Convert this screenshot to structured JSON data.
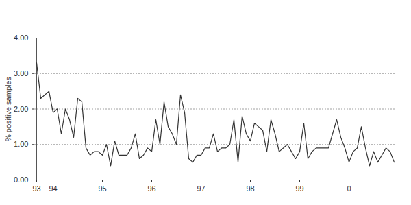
{
  "chart_data": {
    "type": "line",
    "y_label": "% positive samples",
    "categories": [
      "93",
      null,
      null,
      null,
      "94",
      null,
      null,
      null,
      null,
      null,
      null,
      null,
      null,
      null,
      null,
      null,
      "95",
      null,
      null,
      null,
      null,
      null,
      null,
      null,
      null,
      null,
      null,
      null,
      "96",
      null,
      null,
      null,
      null,
      null,
      null,
      null,
      null,
      null,
      null,
      null,
      "97",
      null,
      null,
      null,
      null,
      null,
      null,
      null,
      null,
      null,
      null,
      null,
      "98",
      null,
      null,
      null,
      null,
      null,
      null,
      null,
      null,
      null,
      null,
      null,
      "99",
      null,
      null,
      null,
      null,
      null,
      null,
      null,
      null,
      null,
      null,
      null,
      "0",
      null,
      null,
      null,
      null,
      null,
      null,
      null,
      null,
      null,
      null,
      null
    ],
    "values": [
      3.3,
      2.3,
      2.4,
      2.5,
      1.9,
      2.0,
      1.3,
      2.0,
      1.7,
      1.2,
      2.3,
      2.2,
      0.9,
      0.7,
      0.8,
      0.8,
      0.7,
      1.0,
      0.4,
      1.1,
      0.7,
      0.7,
      0.7,
      0.9,
      1.3,
      0.6,
      0.7,
      0.9,
      0.8,
      1.7,
      1.0,
      2.2,
      1.5,
      1.3,
      1.0,
      2.4,
      1.9,
      0.6,
      0.5,
      0.7,
      0.7,
      0.9,
      0.9,
      1.3,
      0.8,
      0.9,
      0.9,
      1.0,
      1.7,
      0.5,
      1.8,
      1.3,
      1.1,
      1.6,
      1.5,
      1.4,
      0.8,
      1.7,
      1.3,
      0.8,
      0.9,
      1.0,
      0.8,
      0.6,
      0.8,
      1.6,
      0.6,
      0.8,
      0.9,
      0.9,
      0.9,
      0.9,
      1.3,
      1.7,
      1.2,
      0.9,
      0.5,
      0.8,
      0.9,
      1.5,
      0.9,
      0.4,
      0.8,
      0.5,
      0.7,
      0.9,
      0.8,
      0.5
    ],
    "color": "#333333",
    "ylim": [
      0,
      4
    ],
    "yticks": [
      {
        "value": 0,
        "label": "0.00"
      },
      {
        "value": 1,
        "label": "1.00"
      },
      {
        "value": 2,
        "label": "2.00"
      },
      {
        "value": 3,
        "label": "3.00"
      },
      {
        "value": 4,
        "label": "4.00"
      }
    ],
    "grid": true
  }
}
